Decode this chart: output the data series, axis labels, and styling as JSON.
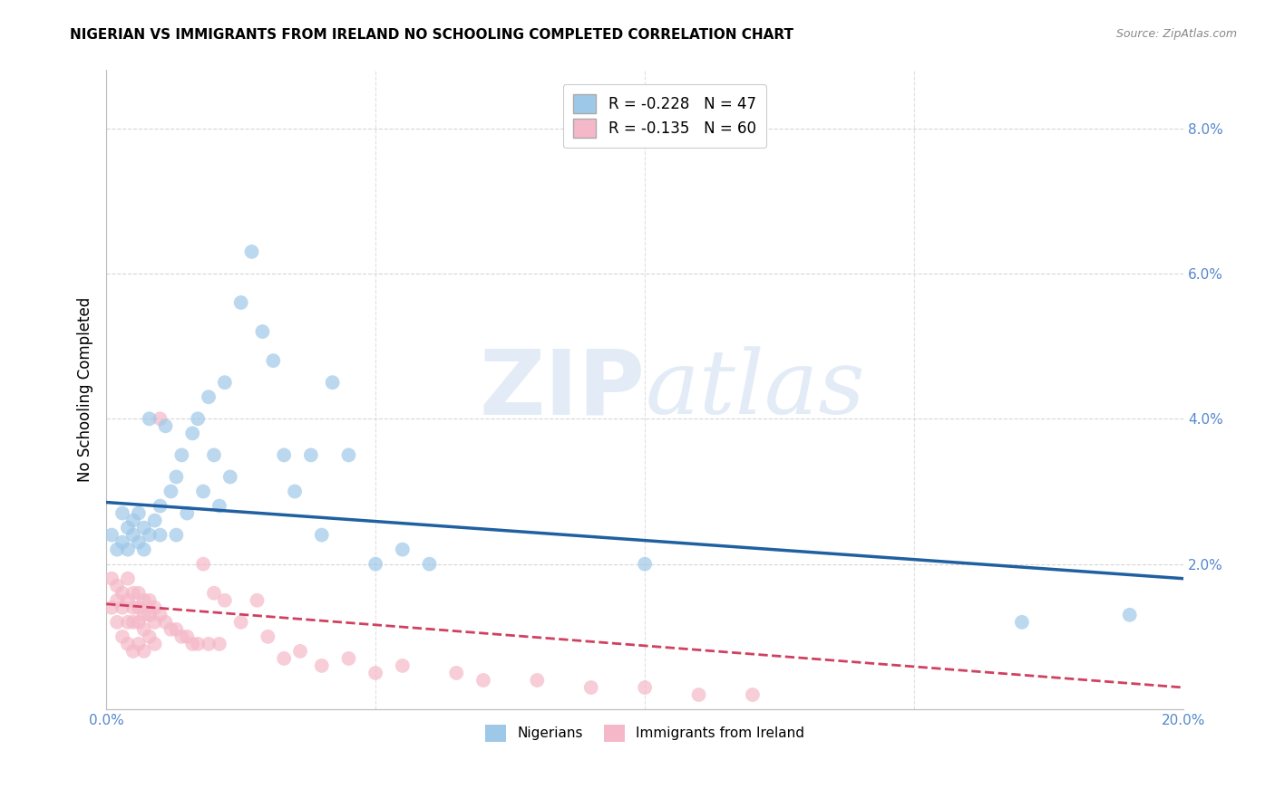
{
  "title": "NIGERIAN VS IMMIGRANTS FROM IRELAND NO SCHOOLING COMPLETED CORRELATION CHART",
  "source": "Source: ZipAtlas.com",
  "ylabel": "No Schooling Completed",
  "xlim": [
    0.0,
    0.2
  ],
  "ylim": [
    0.0,
    0.088
  ],
  "x_ticks": [
    0.0,
    0.05,
    0.1,
    0.15,
    0.2
  ],
  "x_tick_labels": [
    "0.0%",
    "",
    "",
    "",
    "20.0%"
  ],
  "y_ticks": [
    0.0,
    0.02,
    0.04,
    0.06,
    0.08
  ],
  "y_tick_labels": [
    "",
    "2.0%",
    "4.0%",
    "6.0%",
    "8.0%"
  ],
  "nigerian_R": -0.228,
  "nigerian_N": 47,
  "ireland_R": -0.135,
  "ireland_N": 60,
  "nigerian_color": "#9ec8e8",
  "ireland_color": "#f5b8c8",
  "nigerian_line_color": "#2060a0",
  "ireland_line_color": "#d04060",
  "watermark_zip": "ZIP",
  "watermark_atlas": "atlas",
  "nigerian_x": [
    0.001,
    0.002,
    0.003,
    0.003,
    0.004,
    0.004,
    0.005,
    0.005,
    0.006,
    0.006,
    0.007,
    0.007,
    0.008,
    0.008,
    0.009,
    0.01,
    0.01,
    0.011,
    0.012,
    0.013,
    0.013,
    0.014,
    0.015,
    0.016,
    0.017,
    0.018,
    0.019,
    0.02,
    0.021,
    0.022,
    0.023,
    0.025,
    0.027,
    0.029,
    0.031,
    0.033,
    0.035,
    0.038,
    0.04,
    0.042,
    0.045,
    0.05,
    0.055,
    0.06,
    0.1,
    0.17,
    0.19
  ],
  "nigerian_y": [
    0.024,
    0.022,
    0.027,
    0.023,
    0.025,
    0.022,
    0.026,
    0.024,
    0.027,
    0.023,
    0.025,
    0.022,
    0.04,
    0.024,
    0.026,
    0.028,
    0.024,
    0.039,
    0.03,
    0.032,
    0.024,
    0.035,
    0.027,
    0.038,
    0.04,
    0.03,
    0.043,
    0.035,
    0.028,
    0.045,
    0.032,
    0.056,
    0.063,
    0.052,
    0.048,
    0.035,
    0.03,
    0.035,
    0.024,
    0.045,
    0.035,
    0.02,
    0.022,
    0.02,
    0.02,
    0.012,
    0.013
  ],
  "ireland_x": [
    0.001,
    0.001,
    0.002,
    0.002,
    0.002,
    0.003,
    0.003,
    0.003,
    0.004,
    0.004,
    0.004,
    0.004,
    0.005,
    0.005,
    0.005,
    0.005,
    0.006,
    0.006,
    0.006,
    0.006,
    0.007,
    0.007,
    0.007,
    0.007,
    0.008,
    0.008,
    0.008,
    0.009,
    0.009,
    0.009,
    0.01,
    0.01,
    0.011,
    0.012,
    0.013,
    0.014,
    0.015,
    0.016,
    0.017,
    0.018,
    0.019,
    0.02,
    0.021,
    0.022,
    0.025,
    0.028,
    0.03,
    0.033,
    0.036,
    0.04,
    0.045,
    0.05,
    0.055,
    0.065,
    0.07,
    0.08,
    0.09,
    0.1,
    0.11,
    0.12
  ],
  "ireland_y": [
    0.018,
    0.014,
    0.017,
    0.015,
    0.012,
    0.016,
    0.014,
    0.01,
    0.018,
    0.015,
    0.012,
    0.009,
    0.016,
    0.014,
    0.012,
    0.008,
    0.016,
    0.014,
    0.012,
    0.009,
    0.015,
    0.013,
    0.011,
    0.008,
    0.015,
    0.013,
    0.01,
    0.014,
    0.012,
    0.009,
    0.013,
    0.04,
    0.012,
    0.011,
    0.011,
    0.01,
    0.01,
    0.009,
    0.009,
    0.02,
    0.009,
    0.016,
    0.009,
    0.015,
    0.012,
    0.015,
    0.01,
    0.007,
    0.008,
    0.006,
    0.007,
    0.005,
    0.006,
    0.005,
    0.004,
    0.004,
    0.003,
    0.003,
    0.002,
    0.002
  ],
  "nig_line_x": [
    0.0,
    0.2
  ],
  "nig_line_y": [
    0.0285,
    0.018
  ],
  "ire_line_x": [
    0.0,
    0.2
  ],
  "ire_line_y": [
    0.0145,
    0.003
  ]
}
